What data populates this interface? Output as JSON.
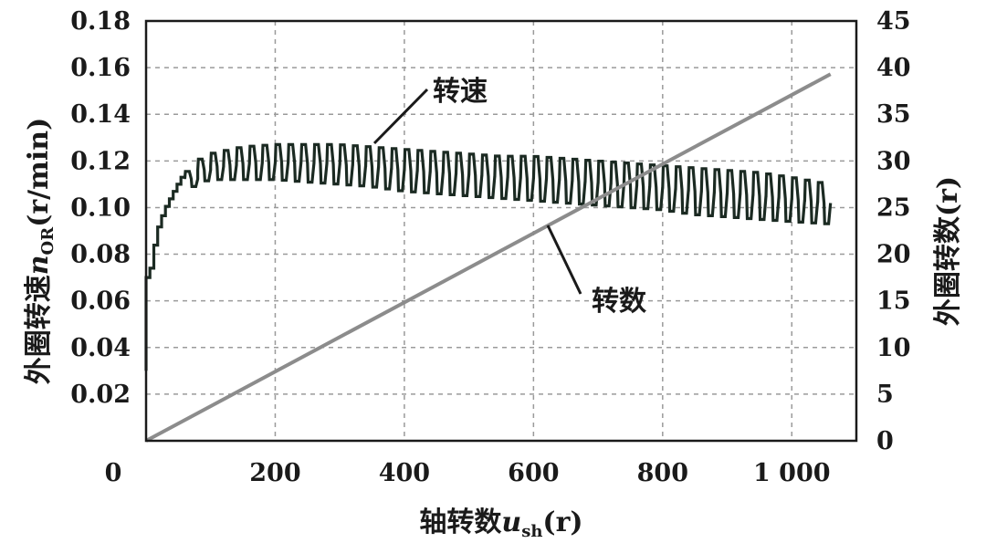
{
  "chart_data": {
    "type": "line",
    "title": "",
    "xlabel": {
      "main": "轴转数",
      "var": "u",
      "sub": "sh",
      "unit": "(r)"
    },
    "ylabel_left": {
      "main": "外圈转速",
      "var": "n",
      "sub": "OR",
      "unit": "(r/min)"
    },
    "ylabel_right": "外圈转数(r)",
    "x_ticks": [
      "0",
      "200",
      "400",
      "600",
      "800",
      "1 000"
    ],
    "y_left_ticks": [
      "0.02",
      "0.04",
      "0.06",
      "0.08",
      "0.10",
      "0.12",
      "0.14",
      "0.16",
      "0.18"
    ],
    "y_right_ticks": [
      "0",
      "5",
      "10",
      "15",
      "20",
      "25",
      "30",
      "35",
      "40",
      "45"
    ],
    "xlim": [
      0,
      1100
    ],
    "ylim_left": [
      0,
      0.18
    ],
    "ylim_right": [
      0,
      45
    ],
    "grid": true,
    "series": [
      {
        "name": "转速",
        "axis": "left",
        "color": "#1b2a22",
        "style": "stepped oscillation",
        "x": [
          0,
          5,
          10,
          15,
          25,
          35,
          50,
          60,
          70,
          80,
          100,
          150,
          200,
          250,
          300,
          350,
          400,
          450,
          500,
          550,
          600,
          650,
          700,
          750,
          800,
          850,
          900,
          950,
          1000,
          1060
        ],
        "upper": [
          0.035,
          0.07,
          0.07,
          0.08,
          0.093,
          0.1,
          0.108,
          0.113,
          0.118,
          0.12,
          0.123,
          0.126,
          0.127,
          0.127,
          0.127,
          0.126,
          0.125,
          0.124,
          0.123,
          0.122,
          0.122,
          0.121,
          0.12,
          0.119,
          0.118,
          0.117,
          0.116,
          0.115,
          0.113,
          0.11
        ],
        "lower": [
          0.03,
          0.065,
          0.068,
          0.076,
          0.09,
          0.096,
          0.104,
          0.107,
          0.108,
          0.11,
          0.112,
          0.112,
          0.112,
          0.111,
          0.11,
          0.109,
          0.107,
          0.106,
          0.105,
          0.104,
          0.103,
          0.102,
          0.101,
          0.1,
          0.099,
          0.097,
          0.096,
          0.095,
          0.094,
          0.093
        ],
        "period": 20
      },
      {
        "name": "转数",
        "axis": "right",
        "color": "#8c8c8c",
        "x": [
          0,
          1060
        ],
        "y": [
          0,
          39.3
        ]
      }
    ],
    "annotations": [
      {
        "text": "转速",
        "series": "转速"
      },
      {
        "text": "转数",
        "series": "转数"
      }
    ]
  }
}
